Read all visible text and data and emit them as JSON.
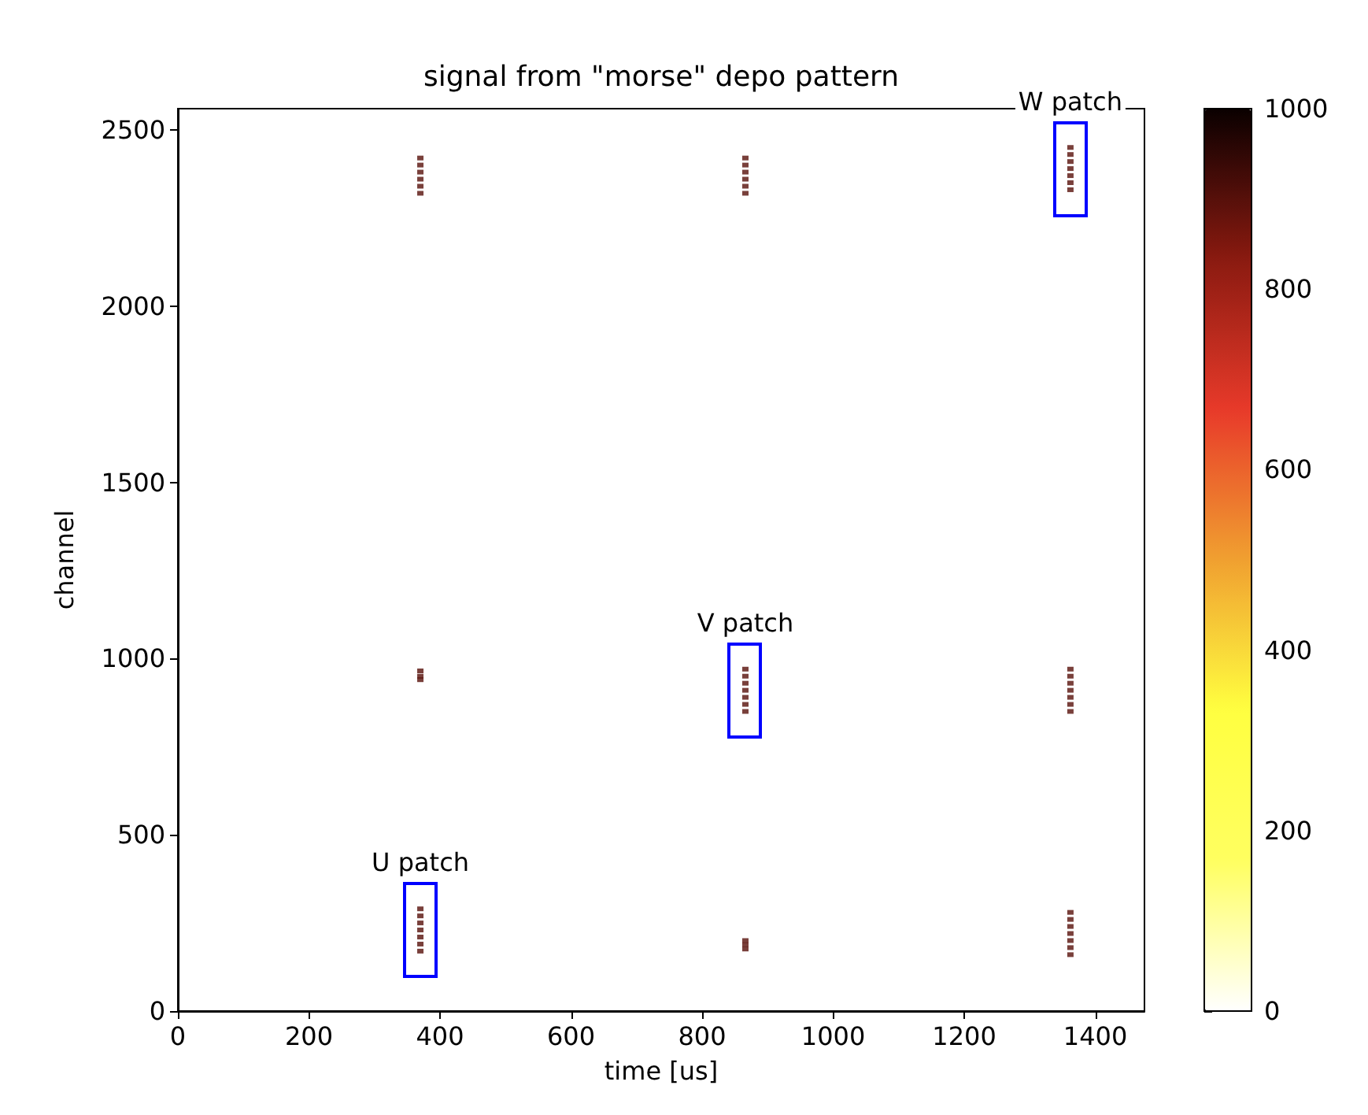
{
  "chart_data": {
    "type": "scatter",
    "title": "signal from \"morse\" depo pattern",
    "xlabel": "time [us]",
    "ylabel": "channel",
    "xlim": [
      0,
      1475
    ],
    "xticks": [
      0,
      200,
      400,
      600,
      800,
      1000,
      1200,
      1400
    ],
    "ylim": [
      0,
      2560
    ],
    "yticks": [
      0,
      500,
      1000,
      1500,
      2000,
      2500
    ],
    "clim": [
      0,
      1000
    ],
    "cticks": [
      0,
      200,
      400,
      600,
      800,
      1000
    ],
    "marker": "square",
    "series": [
      {
        "x": [
          370,
          370,
          370,
          370,
          370,
          370,
          866,
          866,
          866,
          866,
          866,
          866,
          1362,
          1362,
          1362,
          1362,
          1362,
          1362,
          1362,
          370,
          370,
          370,
          866,
          866,
          866,
          866,
          866,
          866,
          866,
          1362,
          1362,
          1362,
          1362,
          1362,
          1362,
          1362,
          370,
          370,
          370,
          370,
          370,
          370,
          370,
          866,
          866,
          866,
          1362,
          1362,
          1362,
          1362,
          1362,
          1362,
          1362
        ],
        "values": [
          2420,
          2400,
          2380,
          2360,
          2340,
          2320,
          2420,
          2400,
          2380,
          2360,
          2340,
          2320,
          2450,
          2430,
          2410,
          2390,
          2370,
          2350,
          2330,
          965,
          950,
          940,
          970,
          950,
          930,
          910,
          890,
          870,
          850,
          970,
          950,
          930,
          910,
          890,
          870,
          850,
          290,
          270,
          250,
          230,
          210,
          190,
          170,
          200,
          188,
          176,
          280,
          260,
          240,
          220,
          200,
          180,
          160
        ],
        "cvalues": [
          900,
          900,
          900,
          900,
          900,
          900,
          900,
          900,
          900,
          900,
          900,
          900,
          900,
          900,
          900,
          900,
          900,
          900,
          900,
          900,
          900,
          900,
          900,
          900,
          900,
          900,
          900,
          900,
          900,
          900,
          900,
          900,
          900,
          900,
          900,
          900,
          900,
          900,
          900,
          900,
          900,
          900,
          900,
          900,
          900,
          900,
          900,
          900,
          900,
          900,
          900,
          900,
          900
        ]
      }
    ],
    "annotations": [
      {
        "text": "U patch",
        "x": 370,
        "y": 290
      },
      {
        "text": "V patch",
        "x": 866,
        "y": 970
      },
      {
        "text": "W patch",
        "x": 1362,
        "y": 2450
      }
    ]
  }
}
